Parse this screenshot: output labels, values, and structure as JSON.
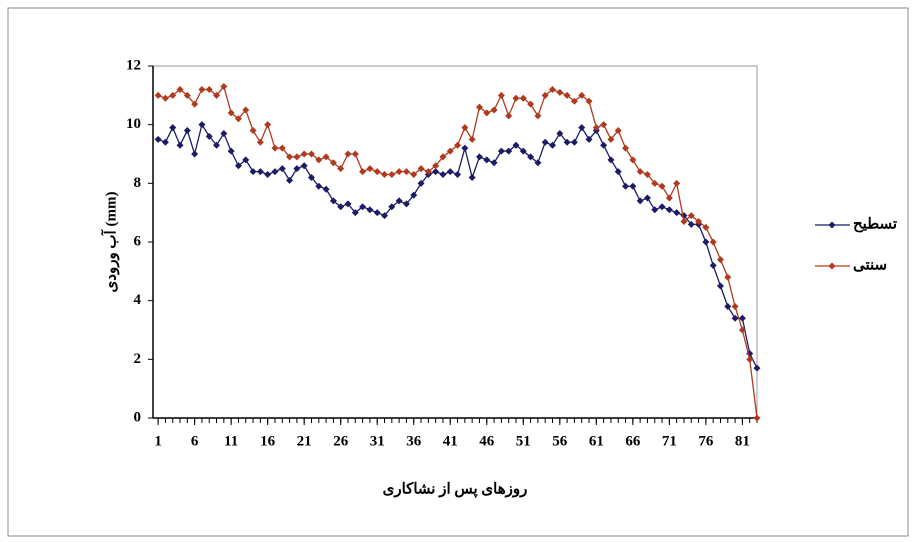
{
  "chart_data": {
    "type": "line",
    "y_label": "آب ورودی (mm)",
    "x_label": "روزهای پس از نشاکاری",
    "x": [
      1,
      2,
      3,
      4,
      5,
      6,
      7,
      8,
      9,
      10,
      11,
      12,
      13,
      14,
      15,
      16,
      17,
      18,
      19,
      20,
      21,
      22,
      23,
      24,
      25,
      26,
      27,
      28,
      29,
      30,
      31,
      32,
      33,
      34,
      35,
      36,
      37,
      38,
      39,
      40,
      41,
      42,
      43,
      44,
      45,
      46,
      47,
      48,
      49,
      50,
      51,
      52,
      53,
      54,
      55,
      56,
      57,
      58,
      59,
      60,
      61,
      62,
      63,
      64,
      65,
      66,
      67,
      68,
      69,
      70,
      71,
      72,
      73,
      74,
      75,
      76,
      77,
      78,
      79,
      80,
      81,
      82,
      83
    ],
    "series": [
      {
        "name": "تسطیح",
        "color": "#1c1c66",
        "values": [
          9.5,
          9.4,
          9.9,
          9.3,
          9.8,
          9.0,
          10.0,
          9.6,
          9.3,
          9.7,
          9.1,
          8.6,
          8.8,
          8.4,
          8.4,
          8.3,
          8.4,
          8.5,
          8.1,
          8.5,
          8.6,
          8.2,
          7.9,
          7.8,
          7.4,
          7.2,
          7.3,
          7.0,
          7.2,
          7.1,
          7.0,
          6.9,
          7.2,
          7.4,
          7.3,
          7.6,
          8.0,
          8.3,
          8.4,
          8.3,
          8.4,
          8.3,
          9.2,
          8.2,
          8.9,
          8.8,
          8.7,
          9.1,
          9.1,
          9.3,
          9.1,
          8.9,
          8.7,
          9.4,
          9.3,
          9.7,
          9.4,
          9.4,
          9.9,
          9.5,
          9.8,
          9.3,
          8.8,
          8.4,
          7.9,
          7.9,
          7.4,
          7.5,
          7.1,
          7.2,
          7.1,
          7.0,
          6.9,
          6.6,
          6.6,
          6.0,
          5.2,
          4.5,
          3.8,
          3.4,
          3.4,
          2.2,
          1.7
        ]
      },
      {
        "name": "سنتی",
        "color": "#b03a1e",
        "values": [
          11.0,
          10.9,
          11.0,
          11.2,
          11.0,
          10.7,
          11.2,
          11.2,
          11.0,
          11.3,
          10.4,
          10.2,
          10.5,
          9.8,
          9.4,
          10.0,
          9.2,
          9.2,
          8.9,
          8.9,
          9.0,
          9.0,
          8.8,
          8.9,
          8.7,
          8.5,
          9.0,
          9.0,
          8.4,
          8.5,
          8.4,
          8.3,
          8.3,
          8.4,
          8.4,
          8.3,
          8.5,
          8.4,
          8.6,
          8.9,
          9.1,
          9.3,
          9.9,
          9.5,
          10.6,
          10.4,
          10.5,
          11.0,
          10.3,
          10.9,
          10.9,
          10.7,
          10.3,
          11.0,
          11.2,
          11.1,
          11.0,
          10.8,
          11.0,
          10.8,
          9.9,
          10.0,
          9.5,
          9.8,
          9.2,
          8.8,
          8.4,
          8.3,
          8.0,
          7.9,
          7.5,
          8.0,
          6.7,
          6.9,
          6.7,
          6.5,
          6.0,
          5.4,
          4.8,
          3.8,
          3.0,
          2.0,
          0.0
        ]
      }
    ],
    "xlim": [
      0.3,
      83
    ],
    "xticks": [
      1,
      6,
      11,
      16,
      21,
      26,
      31,
      36,
      41,
      46,
      51,
      56,
      61,
      66,
      71,
      76,
      81
    ],
    "ylim": [
      0,
      12
    ],
    "yticks": [
      0,
      2,
      4,
      6,
      8,
      10,
      12
    ]
  }
}
